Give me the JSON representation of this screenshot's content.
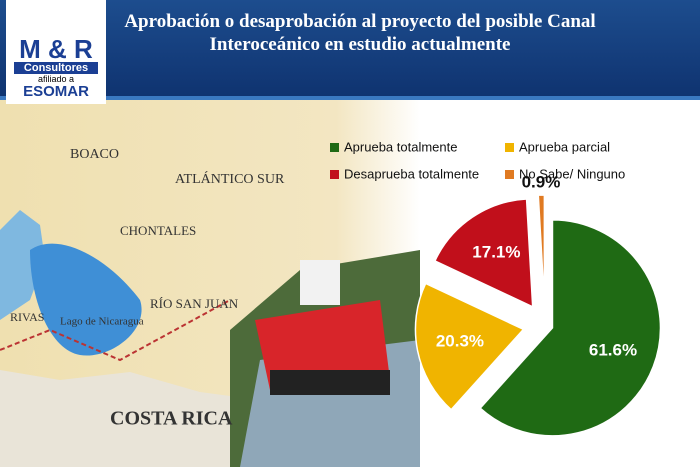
{
  "logo": {
    "brand": "M & R",
    "name": "Consultores",
    "affiliation": "afiliado a",
    "partner": "ESOMAR"
  },
  "map_labels": [
    "BOACO",
    "ATLÁNTICO SUR",
    "CHONTALES",
    "RÍO SAN JUAN",
    "RIVAS",
    "Lago de Nicaragua",
    "COSTA RICA"
  ],
  "chart_data": {
    "type": "pie",
    "title": "Aprobación o desaprobación al proyecto del posible Canal Interoceánico en estudio actualmente",
    "categories": [
      "Aprueba totalmente",
      "Aprueba parcial",
      "Desaprueba totalmente",
      "No Sabe/ Ninguno"
    ],
    "values": [
      61.6,
      20.3,
      17.1,
      0.9
    ],
    "value_labels": [
      "61.6%",
      "20.3%",
      "17.1%",
      "0.9%"
    ],
    "colors": [
      "#1f6a14",
      "#f0b400",
      "#c10f1b",
      "#e07a22"
    ],
    "exploded": true
  }
}
